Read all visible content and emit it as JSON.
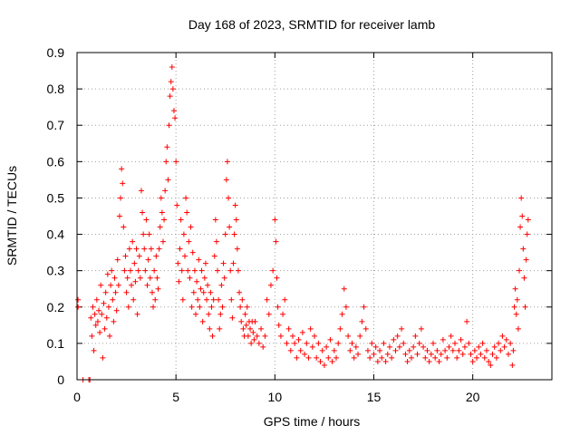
{
  "chart_data": {
    "type": "scatter",
    "title": "Day 168 of 2023, SRMTID for receiver lamb",
    "xlabel": "GPS time / hours",
    "ylabel": "SRMTID / TECUs",
    "xlim": [
      0,
      24
    ],
    "ylim": [
      0,
      0.9
    ],
    "xticks": [
      0,
      5,
      10,
      15,
      20
    ],
    "xtick_labels": [
      "0",
      "5",
      "10",
      "15",
      "20"
    ],
    "yticks": [
      0,
      0.1,
      0.2,
      0.3,
      0.4,
      0.5,
      0.6,
      0.7,
      0.8,
      0.9
    ],
    "ytick_labels": [
      "0",
      "0.1",
      "0.2",
      "0.3",
      "0.4",
      "0.5",
      "0.6",
      "0.7",
      "0.8",
      "0.9"
    ],
    "grid": true,
    "marker": "+",
    "series": [
      {
        "name": "SRMTID",
        "color": "#ff0000",
        "points": [
          [
            0.05,
            0.22
          ],
          [
            0.05,
            0.2
          ],
          [
            0.3,
            0.0
          ],
          [
            0.6,
            0.0
          ],
          [
            0.65,
            0.0
          ],
          [
            0.7,
            0.17
          ],
          [
            0.75,
            0.12
          ],
          [
            0.8,
            0.2
          ],
          [
            0.85,
            0.08
          ],
          [
            0.9,
            0.18
          ],
          [
            0.95,
            0.15
          ],
          [
            1.0,
            0.22
          ],
          [
            1.05,
            0.16
          ],
          [
            1.1,
            0.19
          ],
          [
            1.15,
            0.13
          ],
          [
            1.2,
            0.26
          ],
          [
            1.25,
            0.18
          ],
          [
            1.3,
            0.06
          ],
          [
            1.35,
            0.21
          ],
          [
            1.4,
            0.14
          ],
          [
            1.45,
            0.24
          ],
          [
            1.5,
            0.17
          ],
          [
            1.55,
            0.29
          ],
          [
            1.6,
            0.2
          ],
          [
            1.65,
            0.12
          ],
          [
            1.7,
            0.26
          ],
          [
            1.75,
            0.3
          ],
          [
            1.8,
            0.22
          ],
          [
            1.85,
            0.16
          ],
          [
            1.9,
            0.28
          ],
          [
            1.95,
            0.24
          ],
          [
            2.0,
            0.19
          ],
          [
            2.05,
            0.33
          ],
          [
            2.1,
            0.26
          ],
          [
            2.15,
            0.45
          ],
          [
            2.2,
            0.5
          ],
          [
            2.25,
            0.58
          ],
          [
            2.3,
            0.54
          ],
          [
            2.35,
            0.42
          ],
          [
            2.4,
            0.3
          ],
          [
            2.45,
            0.34
          ],
          [
            2.5,
            0.24
          ],
          [
            2.55,
            0.28
          ],
          [
            2.6,
            0.2
          ],
          [
            2.65,
            0.36
          ],
          [
            2.7,
            0.3
          ],
          [
            2.75,
            0.26
          ],
          [
            2.8,
            0.38
          ],
          [
            2.85,
            0.22
          ],
          [
            2.9,
            0.32
          ],
          [
            2.95,
            0.27
          ],
          [
            3.0,
            0.36
          ],
          [
            3.05,
            0.18
          ],
          [
            3.1,
            0.3
          ],
          [
            3.15,
            0.34
          ],
          [
            3.2,
            0.28
          ],
          [
            3.25,
            0.52
          ],
          [
            3.3,
            0.46
          ],
          [
            3.35,
            0.4
          ],
          [
            3.4,
            0.36
          ],
          [
            3.45,
            0.3
          ],
          [
            3.5,
            0.44
          ],
          [
            3.55,
            0.26
          ],
          [
            3.6,
            0.33
          ],
          [
            3.65,
            0.4
          ],
          [
            3.7,
            0.28
          ],
          [
            3.75,
            0.36
          ],
          [
            3.8,
            0.24
          ],
          [
            3.85,
            0.2
          ],
          [
            3.9,
            0.3
          ],
          [
            3.95,
            0.22
          ],
          [
            4.0,
            0.34
          ],
          [
            4.05,
            0.28
          ],
          [
            4.1,
            0.25
          ],
          [
            4.15,
            0.36
          ],
          [
            4.2,
            0.42
          ],
          [
            4.25,
            0.5
          ],
          [
            4.3,
            0.46
          ],
          [
            4.35,
            0.38
          ],
          [
            4.4,
            0.44
          ],
          [
            4.45,
            0.52
          ],
          [
            4.5,
            0.6
          ],
          [
            4.55,
            0.64
          ],
          [
            4.6,
            0.55
          ],
          [
            4.65,
            0.7
          ],
          [
            4.7,
            0.78
          ],
          [
            4.75,
            0.82
          ],
          [
            4.8,
            0.86
          ],
          [
            4.85,
            0.8
          ],
          [
            4.9,
            0.74
          ],
          [
            4.95,
            0.72
          ],
          [
            5.0,
            0.6
          ],
          [
            5.05,
            0.48
          ],
          [
            5.1,
            0.32
          ],
          [
            5.15,
            0.27
          ],
          [
            5.2,
            0.36
          ],
          [
            5.25,
            0.44
          ],
          [
            5.3,
            0.3
          ],
          [
            5.35,
            0.22
          ],
          [
            5.4,
            0.4
          ],
          [
            5.45,
            0.34
          ],
          [
            5.5,
            0.5
          ],
          [
            5.55,
            0.46
          ],
          [
            5.6,
            0.3
          ],
          [
            5.65,
            0.38
          ],
          [
            5.7,
            0.28
          ],
          [
            5.75,
            0.42
          ],
          [
            5.8,
            0.2
          ],
          [
            5.85,
            0.35
          ],
          [
            5.9,
            0.24
          ],
          [
            5.95,
            0.3
          ],
          [
            6.0,
            0.18
          ],
          [
            6.05,
            0.27
          ],
          [
            6.1,
            0.22
          ],
          [
            6.15,
            0.33
          ],
          [
            6.2,
            0.2
          ],
          [
            6.25,
            0.25
          ],
          [
            6.3,
            0.3
          ],
          [
            6.35,
            0.16
          ],
          [
            6.4,
            0.24
          ],
          [
            6.45,
            0.28
          ],
          [
            6.5,
            0.32
          ],
          [
            6.55,
            0.22
          ],
          [
            6.6,
            0.26
          ],
          [
            6.65,
            0.18
          ],
          [
            6.7,
            0.14
          ],
          [
            6.75,
            0.24
          ],
          [
            6.8,
            0.2
          ],
          [
            6.85,
            0.12
          ],
          [
            6.9,
            0.22
          ],
          [
            6.95,
            0.34
          ],
          [
            7.0,
            0.44
          ],
          [
            7.05,
            0.38
          ],
          [
            7.1,
            0.3
          ],
          [
            7.15,
            0.22
          ],
          [
            7.2,
            0.14
          ],
          [
            7.25,
            0.18
          ],
          [
            7.3,
            0.26
          ],
          [
            7.35,
            0.2
          ],
          [
            7.4,
            0.32
          ],
          [
            7.45,
            0.28
          ],
          [
            7.5,
            0.4
          ],
          [
            7.55,
            0.55
          ],
          [
            7.6,
            0.6
          ],
          [
            7.65,
            0.5
          ],
          [
            7.7,
            0.42
          ],
          [
            7.75,
            0.3
          ],
          [
            7.8,
            0.22
          ],
          [
            7.85,
            0.17
          ],
          [
            7.9,
            0.32
          ],
          [
            7.95,
            0.4
          ],
          [
            8.0,
            0.48
          ],
          [
            8.05,
            0.44
          ],
          [
            8.1,
            0.36
          ],
          [
            8.15,
            0.3
          ],
          [
            8.2,
            0.24
          ],
          [
            8.25,
            0.2
          ],
          [
            8.3,
            0.16
          ],
          [
            8.35,
            0.22
          ],
          [
            8.4,
            0.14
          ],
          [
            8.45,
            0.12
          ],
          [
            8.5,
            0.18
          ],
          [
            8.55,
            0.15
          ],
          [
            8.6,
            0.2
          ],
          [
            8.65,
            0.12
          ],
          [
            8.7,
            0.16
          ],
          [
            8.75,
            0.14
          ],
          [
            8.8,
            0.1
          ],
          [
            8.85,
            0.16
          ],
          [
            8.9,
            0.13
          ],
          [
            8.95,
            0.11
          ],
          [
            9.0,
            0.16
          ],
          [
            9.1,
            0.12
          ],
          [
            9.2,
            0.1
          ],
          [
            9.3,
            0.14
          ],
          [
            9.4,
            0.09
          ],
          [
            9.5,
            0.12
          ],
          [
            9.6,
            0.22
          ],
          [
            9.7,
            0.18
          ],
          [
            9.8,
            0.26
          ],
          [
            9.9,
            0.3
          ],
          [
            10.0,
            0.44
          ],
          [
            10.05,
            0.38
          ],
          [
            10.1,
            0.28
          ],
          [
            10.15,
            0.2
          ],
          [
            10.2,
            0.15
          ],
          [
            10.3,
            0.12
          ],
          [
            10.4,
            0.18
          ],
          [
            10.5,
            0.22
          ],
          [
            10.6,
            0.1
          ],
          [
            10.7,
            0.14
          ],
          [
            10.8,
            0.08
          ],
          [
            10.9,
            0.12
          ],
          [
            11.0,
            0.1
          ],
          [
            11.1,
            0.06
          ],
          [
            11.2,
            0.11
          ],
          [
            11.3,
            0.08
          ],
          [
            11.4,
            0.13
          ],
          [
            11.5,
            0.07
          ],
          [
            11.6,
            0.1
          ],
          [
            11.7,
            0.06
          ],
          [
            11.8,
            0.14
          ],
          [
            11.9,
            0.09
          ],
          [
            12.0,
            0.12
          ],
          [
            12.1,
            0.06
          ],
          [
            12.2,
            0.1
          ],
          [
            12.3,
            0.05
          ],
          [
            12.4,
            0.08
          ],
          [
            12.5,
            0.04
          ],
          [
            12.6,
            0.09
          ],
          [
            12.7,
            0.06
          ],
          [
            12.8,
            0.11
          ],
          [
            12.9,
            0.05
          ],
          [
            13.0,
            0.08
          ],
          [
            13.1,
            0.06
          ],
          [
            13.2,
            0.1
          ],
          [
            13.3,
            0.14
          ],
          [
            13.4,
            0.18
          ],
          [
            13.5,
            0.25
          ],
          [
            13.6,
            0.2
          ],
          [
            13.7,
            0.12
          ],
          [
            13.8,
            0.08
          ],
          [
            13.9,
            0.1
          ],
          [
            14.0,
            0.06
          ],
          [
            14.1,
            0.09
          ],
          [
            14.2,
            0.07
          ],
          [
            14.3,
            0.12
          ],
          [
            14.4,
            0.16
          ],
          [
            14.5,
            0.2
          ],
          [
            14.6,
            0.14
          ],
          [
            14.7,
            0.08
          ],
          [
            14.8,
            0.06
          ],
          [
            14.9,
            0.1
          ],
          [
            15.0,
            0.07
          ],
          [
            15.1,
            0.09
          ],
          [
            15.2,
            0.05
          ],
          [
            15.3,
            0.08
          ],
          [
            15.4,
            0.06
          ],
          [
            15.5,
            0.1
          ],
          [
            15.6,
            0.05
          ],
          [
            15.7,
            0.07
          ],
          [
            15.8,
            0.09
          ],
          [
            15.9,
            0.06
          ],
          [
            16.0,
            0.11
          ],
          [
            16.1,
            0.08
          ],
          [
            16.2,
            0.12
          ],
          [
            16.3,
            0.09
          ],
          [
            16.4,
            0.14
          ],
          [
            16.5,
            0.1
          ],
          [
            16.6,
            0.07
          ],
          [
            16.7,
            0.05
          ],
          [
            16.8,
            0.08
          ],
          [
            16.9,
            0.06
          ],
          [
            17.0,
            0.09
          ],
          [
            17.1,
            0.12
          ],
          [
            17.2,
            0.07
          ],
          [
            17.3,
            0.1
          ],
          [
            17.4,
            0.14
          ],
          [
            17.5,
            0.09
          ],
          [
            17.6,
            0.06
          ],
          [
            17.7,
            0.08
          ],
          [
            17.8,
            0.05
          ],
          [
            17.9,
            0.07
          ],
          [
            18.0,
            0.1
          ],
          [
            18.1,
            0.06
          ],
          [
            18.2,
            0.08
          ],
          [
            18.3,
            0.05
          ],
          [
            18.4,
            0.07
          ],
          [
            18.5,
            0.11
          ],
          [
            18.6,
            0.08
          ],
          [
            18.7,
            0.06
          ],
          [
            18.8,
            0.09
          ],
          [
            18.9,
            0.12
          ],
          [
            19.0,
            0.08
          ],
          [
            19.1,
            0.1
          ],
          [
            19.2,
            0.06
          ],
          [
            19.3,
            0.08
          ],
          [
            19.4,
            0.11
          ],
          [
            19.5,
            0.07
          ],
          [
            19.6,
            0.09
          ],
          [
            19.7,
            0.16
          ],
          [
            19.8,
            0.1
          ],
          [
            19.9,
            0.07
          ],
          [
            20.0,
            0.05
          ],
          [
            20.1,
            0.08
          ],
          [
            20.2,
            0.06
          ],
          [
            20.3,
            0.09
          ],
          [
            20.4,
            0.07
          ],
          [
            20.5,
            0.1
          ],
          [
            20.6,
            0.06
          ],
          [
            20.7,
            0.08
          ],
          [
            20.8,
            0.05
          ],
          [
            20.9,
            0.04
          ],
          [
            21.0,
            0.07
          ],
          [
            21.1,
            0.09
          ],
          [
            21.2,
            0.06
          ],
          [
            21.3,
            0.1
          ],
          [
            21.4,
            0.08
          ],
          [
            21.5,
            0.12
          ],
          [
            21.6,
            0.09
          ],
          [
            21.7,
            0.11
          ],
          [
            21.8,
            0.07
          ],
          [
            21.9,
            0.1
          ],
          [
            22.0,
            0.04
          ],
          [
            22.05,
            0.08
          ],
          [
            22.1,
            0.2
          ],
          [
            22.15,
            0.25
          ],
          [
            22.2,
            0.18
          ],
          [
            22.25,
            0.22
          ],
          [
            22.3,
            0.14
          ],
          [
            22.35,
            0.3
          ],
          [
            22.4,
            0.42
          ],
          [
            22.45,
            0.5
          ],
          [
            22.5,
            0.45
          ],
          [
            22.55,
            0.36
          ],
          [
            22.6,
            0.28
          ],
          [
            22.65,
            0.2
          ],
          [
            22.7,
            0.33
          ],
          [
            22.75,
            0.4
          ],
          [
            22.8,
            0.44
          ]
        ]
      }
    ]
  }
}
